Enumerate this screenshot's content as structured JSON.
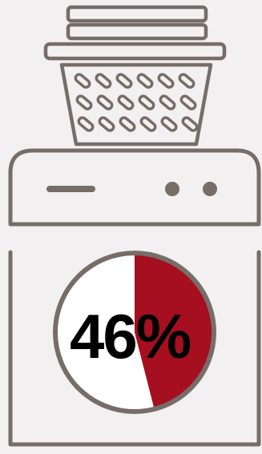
{
  "infographic": {
    "percent_label": "46%",
    "percent_value": 46,
    "icon": "washing-machine-with-laundry-basket-icon"
  },
  "colors": {
    "background": "#f2f0f0",
    "outline": "#776d68",
    "fill_accent": "#a50f1f",
    "fill_base": "#ffffff",
    "text": "#000000"
  }
}
